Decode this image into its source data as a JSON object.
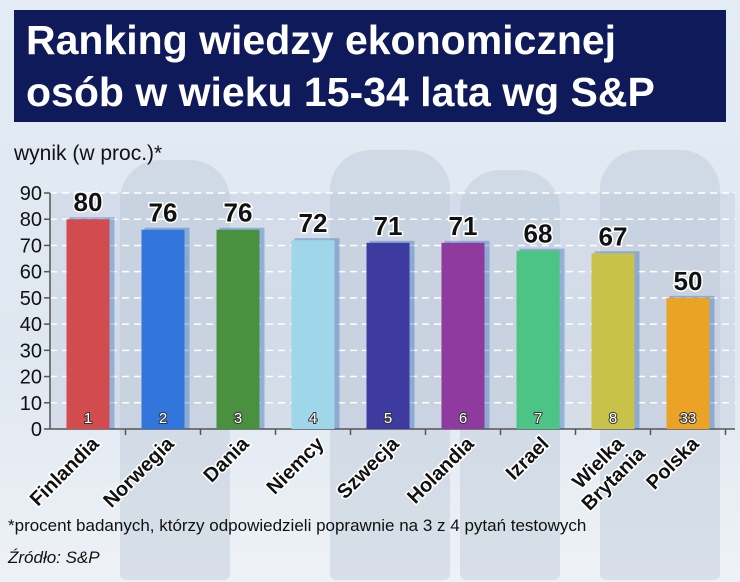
{
  "title_lines": [
    "Ranking wiedzy ekonomicznej",
    "osób w wieku 15-34 lata wg S&P"
  ],
  "footnote": "*procent badanych, którzy odpowiedzieli poprawnie na 3 z 4 pytań testowych",
  "source": "Źródło: S&P",
  "chart_data": {
    "type": "bar",
    "title": "Ranking wiedzy ekonomicznej osób w wieku 15-34 lata wg S&P",
    "ylabel": "wynik (w proc.)*",
    "xlabel": "",
    "ylim": [
      0,
      90
    ],
    "yticks": [
      0,
      10,
      20,
      30,
      40,
      50,
      60,
      70,
      80,
      90
    ],
    "grid": true,
    "categories": [
      "Finlandia",
      "Norwegia",
      "Dania",
      "Niemcy",
      "Szwecja",
      "Holandia",
      "Izrael",
      "Wielka Brytania",
      "Polska"
    ],
    "values": [
      80,
      76,
      76,
      72,
      71,
      71,
      68,
      67,
      50
    ],
    "ranks": [
      "1",
      "2",
      "3",
      "4",
      "5",
      "6",
      "7",
      "8",
      "33"
    ],
    "colors": [
      "#d24c4f",
      "#3275dc",
      "#4a913f",
      "#9fd6ea",
      "#3d3aa0",
      "#8e3a9e",
      "#4cc483",
      "#c8c24a",
      "#eaa324"
    ]
  }
}
